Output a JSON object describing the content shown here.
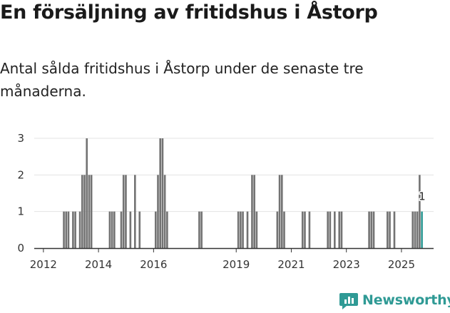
{
  "title": "En försäljning av fritidshus i Åstorp",
  "subtitle": "Antal sålda fritidshus i Åstorp under de senaste tre månaderna.",
  "brand": {
    "name": "Newsworthy",
    "icon": "newsworthy-logo-icon"
  },
  "colors": {
    "bar": "#737373",
    "highlight": "#2f9a95",
    "grid": "#e3e3e3",
    "axis": "#333333"
  },
  "chart_data": {
    "type": "bar",
    "xlabel": "",
    "ylabel": "",
    "ylim": [
      0,
      3
    ],
    "yticks": [
      0,
      1,
      2,
      3
    ],
    "grid": true,
    "x_range": [
      "2011-09",
      "2026-03"
    ],
    "xticks": [
      {
        "label": "2012",
        "date": "2012-01"
      },
      {
        "label": "2014",
        "date": "2014-01"
      },
      {
        "label": "2016",
        "date": "2016-01"
      },
      {
        "label": "2019",
        "date": "2019-01"
      },
      {
        "label": "2021",
        "date": "2021-01"
      },
      {
        "label": "2023",
        "date": "2023-01"
      },
      {
        "label": "2025",
        "date": "2025-01"
      }
    ],
    "series": [
      {
        "values": [
          {
            "x": "2012-10",
            "y": 1
          },
          {
            "x": "2012-11",
            "y": 1
          },
          {
            "x": "2012-12",
            "y": 1
          },
          {
            "x": "2013-02",
            "y": 1
          },
          {
            "x": "2013-03",
            "y": 1
          },
          {
            "x": "2013-05",
            "y": 1
          },
          {
            "x": "2013-06",
            "y": 2
          },
          {
            "x": "2013-07",
            "y": 2
          },
          {
            "x": "2013-08",
            "y": 3
          },
          {
            "x": "2013-09",
            "y": 2
          },
          {
            "x": "2013-10",
            "y": 2
          },
          {
            "x": "2014-06",
            "y": 1
          },
          {
            "x": "2014-07",
            "y": 1
          },
          {
            "x": "2014-08",
            "y": 1
          },
          {
            "x": "2014-11",
            "y": 1
          },
          {
            "x": "2014-12",
            "y": 2
          },
          {
            "x": "2015-01",
            "y": 2
          },
          {
            "x": "2015-03",
            "y": 1
          },
          {
            "x": "2015-05",
            "y": 2
          },
          {
            "x": "2015-07",
            "y": 1
          },
          {
            "x": "2016-02",
            "y": 1
          },
          {
            "x": "2016-03",
            "y": 2
          },
          {
            "x": "2016-04",
            "y": 3
          },
          {
            "x": "2016-05",
            "y": 3
          },
          {
            "x": "2016-06",
            "y": 2
          },
          {
            "x": "2016-07",
            "y": 1
          },
          {
            "x": "2017-09",
            "y": 1
          },
          {
            "x": "2017-10",
            "y": 1
          },
          {
            "x": "2019-02",
            "y": 1
          },
          {
            "x": "2019-03",
            "y": 1
          },
          {
            "x": "2019-04",
            "y": 1
          },
          {
            "x": "2019-06",
            "y": 1
          },
          {
            "x": "2019-08",
            "y": 2
          },
          {
            "x": "2019-09",
            "y": 2
          },
          {
            "x": "2019-10",
            "y": 1
          },
          {
            "x": "2020-07",
            "y": 1
          },
          {
            "x": "2020-08",
            "y": 2
          },
          {
            "x": "2020-09",
            "y": 2
          },
          {
            "x": "2020-10",
            "y": 1
          },
          {
            "x": "2021-06",
            "y": 1
          },
          {
            "x": "2021-07",
            "y": 1
          },
          {
            "x": "2021-09",
            "y": 1
          },
          {
            "x": "2022-05",
            "y": 1
          },
          {
            "x": "2022-06",
            "y": 1
          },
          {
            "x": "2022-08",
            "y": 1
          },
          {
            "x": "2022-10",
            "y": 1
          },
          {
            "x": "2022-11",
            "y": 1
          },
          {
            "x": "2023-11",
            "y": 1
          },
          {
            "x": "2023-12",
            "y": 1
          },
          {
            "x": "2024-01",
            "y": 1
          },
          {
            "x": "2024-07",
            "y": 1
          },
          {
            "x": "2024-08",
            "y": 1
          },
          {
            "x": "2024-10",
            "y": 1
          },
          {
            "x": "2025-06",
            "y": 1
          },
          {
            "x": "2025-07",
            "y": 1
          },
          {
            "x": "2025-08",
            "y": 1
          },
          {
            "x": "2025-09",
            "y": 2
          },
          {
            "x": "2025-10",
            "y": 1
          }
        ]
      }
    ],
    "highlight": {
      "x": "2025-10",
      "y": 1,
      "label": "1"
    }
  }
}
